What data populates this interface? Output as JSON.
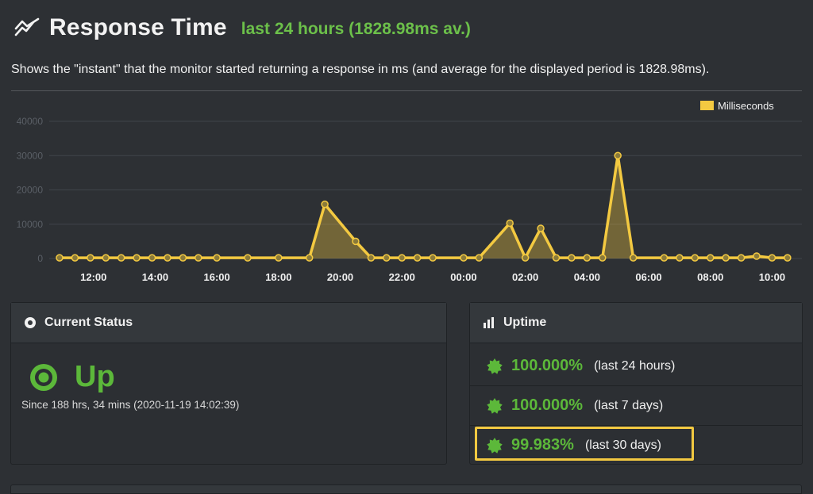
{
  "header": {
    "icon": "line-chart-icon",
    "title": "Response Time",
    "subtitle": "last 24 hours (1828.98ms av.)"
  },
  "description": "Shows the \"instant\" that the monitor started returning a response in ms (and average for the displayed period is 1828.98ms).",
  "chart_data": {
    "type": "area",
    "legend": "Milliseconds",
    "legend_position": "top-right",
    "series_color": "#f3c941",
    "ylim": [
      0,
      40000
    ],
    "yticks": [
      0,
      10000,
      20000,
      30000,
      40000
    ],
    "ytick_labels": [
      "0",
      "10000",
      "20000",
      "30000",
      "40000"
    ],
    "xtick_labels": [
      "12:00",
      "14:00",
      "16:00",
      "18:00",
      "20:00",
      "22:00",
      "00:00",
      "02:00",
      "04:00",
      "06:00",
      "08:00",
      "10:00"
    ],
    "x_hours": [
      10.9,
      11.4,
      11.9,
      12.4,
      12.9,
      13.4,
      13.9,
      14.4,
      14.9,
      15.4,
      16.0,
      17.0,
      18.0,
      19.0,
      19.5,
      20.5,
      21.0,
      21.5,
      22.0,
      22.5,
      23.0,
      24.0,
      24.5,
      25.5,
      26.0,
      26.5,
      27.0,
      27.5,
      28.0,
      28.5,
      29.0,
      29.5,
      30.5,
      31.0,
      31.5,
      32.0,
      32.5,
      33.0,
      33.5,
      34.0,
      34.5
    ],
    "values": [
      200,
      200,
      200,
      200,
      200,
      200,
      200,
      200,
      200,
      200,
      200,
      200,
      200,
      200,
      15800,
      5000,
      200,
      200,
      200,
      200,
      200,
      200,
      200,
      10300,
      200,
      8800,
      200,
      200,
      200,
      200,
      30000,
      200,
      200,
      200,
      200,
      200,
      200,
      200,
      700,
      200,
      200
    ]
  },
  "status": {
    "heading": "Current Status",
    "state": "Up",
    "since": "Since 188 hrs, 34 mins (2020-11-19 14:02:39)",
    "color": "#5cb83a"
  },
  "uptime": {
    "heading": "Uptime",
    "rows": [
      {
        "pct": "100.000%",
        "period": "(last 24 hours)"
      },
      {
        "pct": "100.000%",
        "period": "(last 7 days)"
      },
      {
        "pct": "99.983%",
        "period": "(last 30 days)"
      }
    ],
    "highlight_color": "#f3c941"
  }
}
